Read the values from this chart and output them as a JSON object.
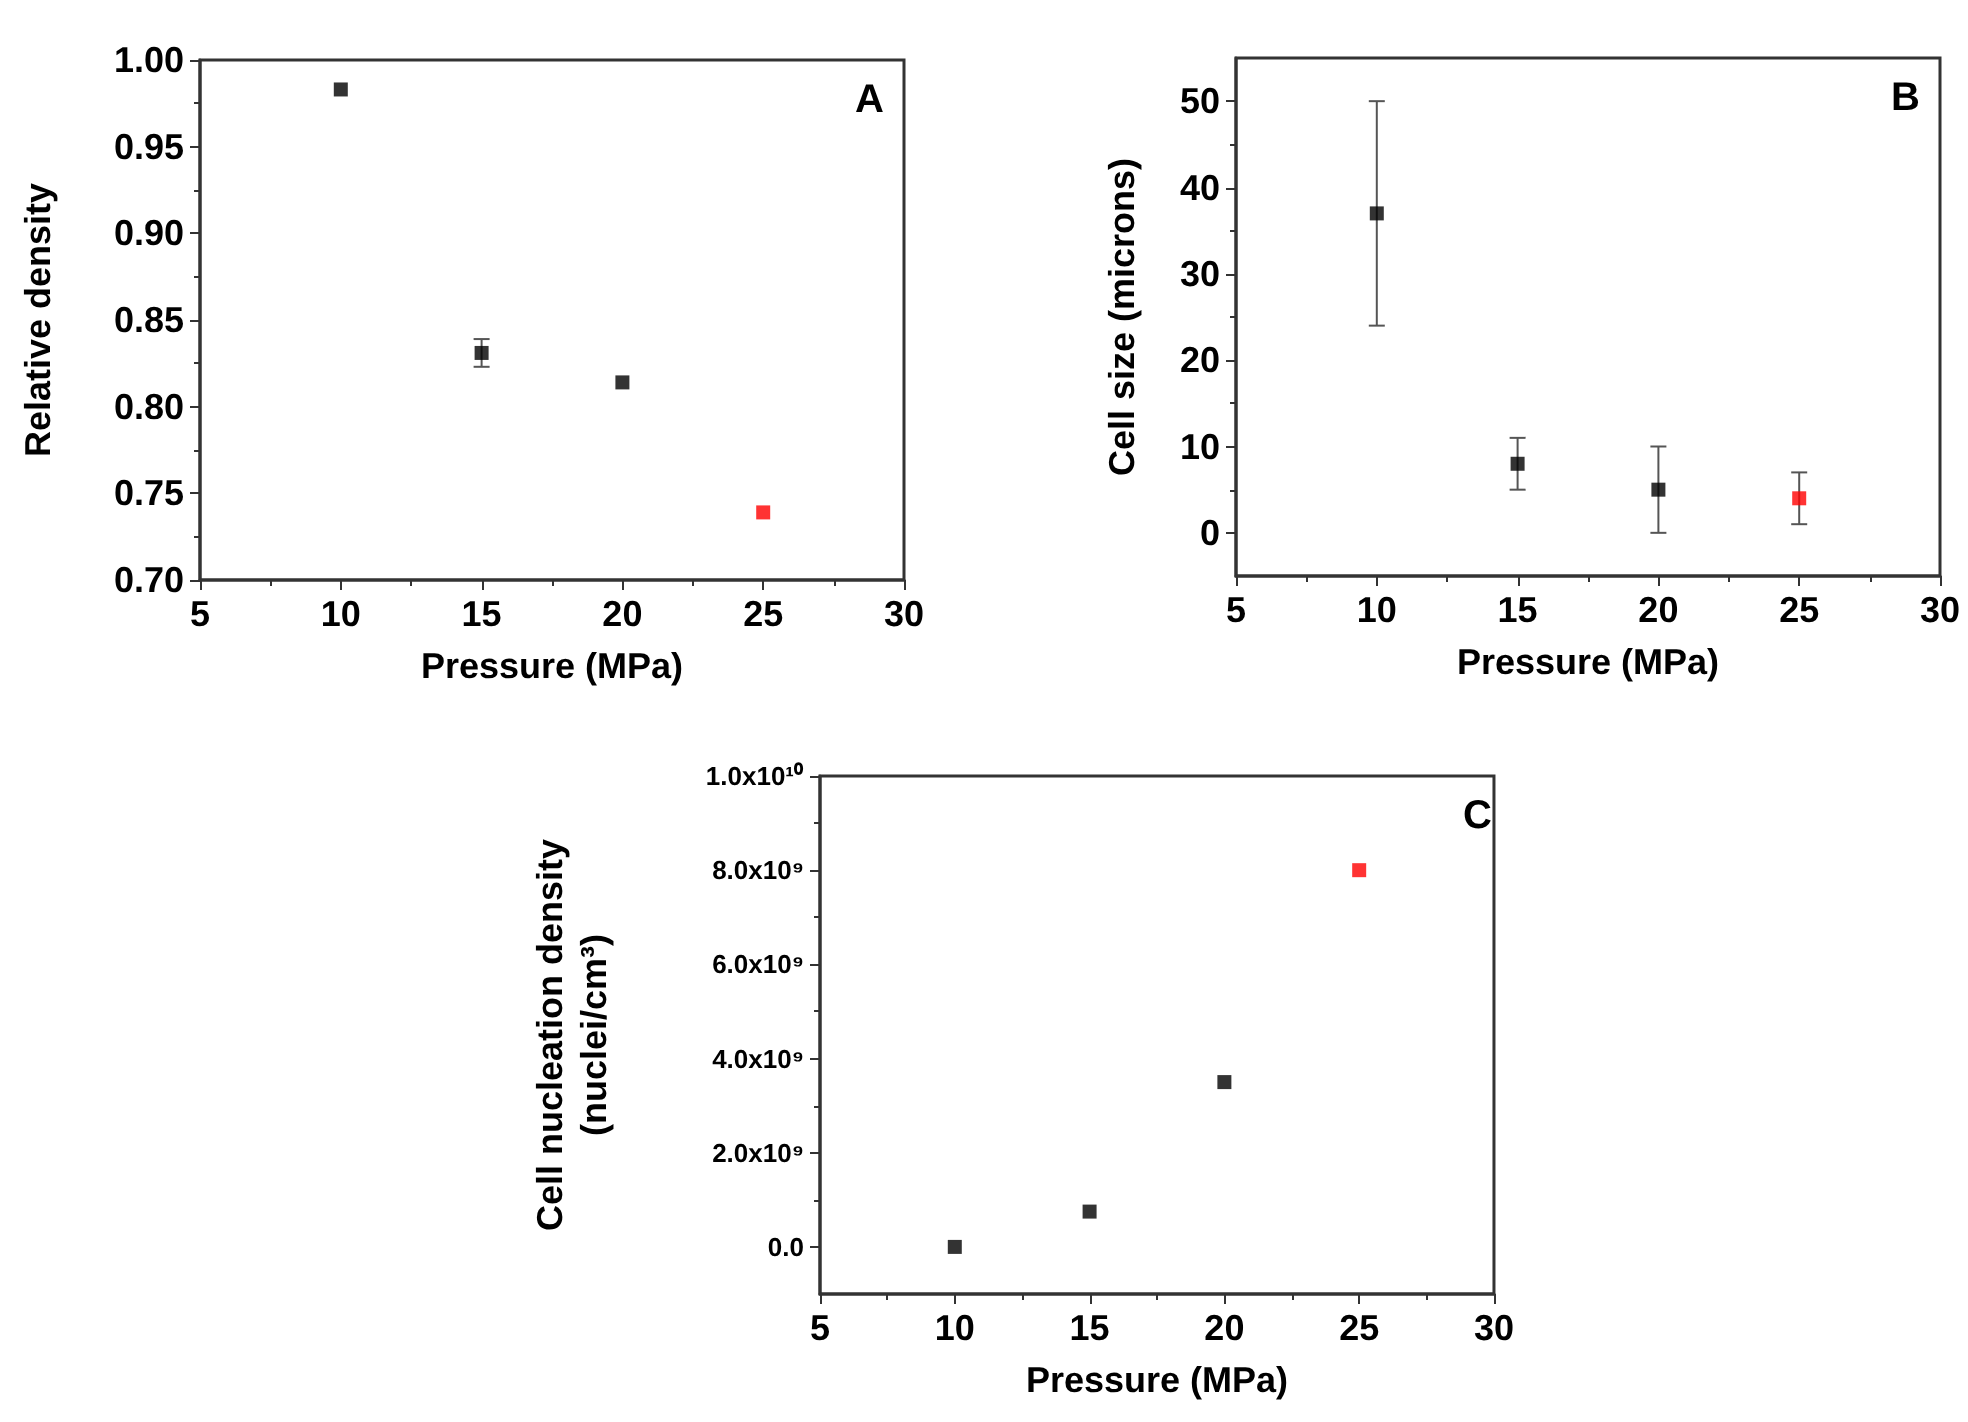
{
  "chart_data": [
    {
      "type": "scatter",
      "xlabel": "Pressure (MPa)",
      "ylabel": "Relative density",
      "annotations": [
        "A"
      ],
      "x": [
        10,
        15,
        20,
        25
      ],
      "values": [
        0.983,
        0.831,
        0.814,
        0.739
      ],
      "errors": [
        null,
        0.008,
        null,
        null
      ],
      "colors": [
        "#000000",
        "#000000",
        "#000000",
        "#ff0000"
      ],
      "xlim": [
        5,
        30
      ],
      "xticks": [
        5,
        10,
        15,
        20,
        25,
        30
      ],
      "ylim": [
        0.7,
        1.0
      ],
      "yticks": [
        {
          "value": 0.7,
          "label": "0.70"
        },
        {
          "value": 0.75,
          "label": "0.75"
        },
        {
          "value": 0.8,
          "label": "0.80"
        },
        {
          "value": 0.85,
          "label": "0.85"
        },
        {
          "value": 0.9,
          "label": "0.90"
        },
        {
          "value": 0.95,
          "label": "0.95"
        },
        {
          "value": 1.0,
          "label": "1.00"
        }
      ],
      "marker": "square",
      "grid": false
    },
    {
      "type": "scatter",
      "xlabel": "Pressure (MPa)",
      "ylabel": "Cell size (microns)",
      "annotations": [
        "B"
      ],
      "x": [
        10,
        15,
        20,
        25
      ],
      "values": [
        37,
        8,
        5,
        4
      ],
      "errors": [
        13,
        3,
        5,
        3
      ],
      "colors": [
        "#000000",
        "#000000",
        "#000000",
        "#ff0000"
      ],
      "xlim": [
        5,
        30
      ],
      "xticks": [
        5,
        10,
        15,
        20,
        25,
        30
      ],
      "ylim": [
        -5,
        55
      ],
      "yticks": [
        0,
        10,
        20,
        30,
        40,
        50
      ],
      "marker": "square",
      "grid": false
    },
    {
      "type": "scatter",
      "xlabel": "Pressure (MPa)",
      "ylabel": "Cell nucleation density\n(nuclei/cm³)",
      "annotations": [
        "C"
      ],
      "x": [
        10,
        15,
        20,
        25
      ],
      "values": [
        0,
        750000000,
        3500000000,
        8000000000
      ],
      "colors": [
        "#000000",
        "#000000",
        "#000000",
        "#ff0000"
      ],
      "xlim": [
        5,
        30
      ],
      "xticks": [
        5,
        10,
        15,
        20,
        25,
        30
      ],
      "ylim": [
        -1000000000,
        10000000000
      ],
      "yticks": [
        {
          "value": 0,
          "label": "0.0"
        },
        {
          "value": 2000000000,
          "label": "2.0x10⁹"
        },
        {
          "value": 4000000000,
          "label": "4.0x10⁹"
        },
        {
          "value": 6000000000,
          "label": "6.0x10⁹"
        },
        {
          "value": 8000000000,
          "label": "8.0x10⁹"
        },
        {
          "value": 10000000000,
          "label": "1.0x10¹⁰"
        }
      ],
      "marker": "square",
      "grid": false
    }
  ]
}
